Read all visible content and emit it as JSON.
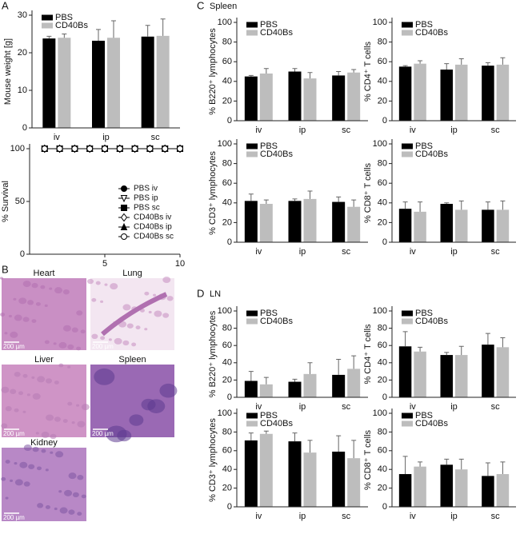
{
  "labels": {
    "a": "A",
    "b": "B",
    "c": "C",
    "c_title": "Spleen",
    "d": "D",
    "d_title": "LN"
  },
  "histology": [
    {
      "name": "Heart",
      "scale": "200 µm"
    },
    {
      "name": "Lung",
      "scale": "200 µm"
    },
    {
      "name": "Liver",
      "scale": "200 µm"
    },
    {
      "name": "Spleen",
      "scale": "200 µm"
    },
    {
      "name": "Kidney",
      "scale": "200 µm"
    }
  ],
  "chart_data": [
    {
      "type": "bar",
      "y_label": "Mouse weight [g]",
      "categories": [
        "iv",
        "ip",
        "sc"
      ],
      "series": [
        {
          "name": "PBS",
          "color": "#000000",
          "values": [
            23.8,
            23.2,
            24.3
          ],
          "errors": [
            0.6,
            3,
            3
          ]
        },
        {
          "name": "CD40Bs",
          "color": "#bdbdbd",
          "values": [
            24,
            24,
            24.5
          ],
          "errors": [
            1,
            4.5,
            4.5
          ]
        }
      ],
      "ylim": [
        0,
        30
      ],
      "yticks": [
        0,
        10,
        20,
        30
      ],
      "legend": "upper left"
    },
    {
      "type": "line",
      "y_label": "% Survival",
      "x": [
        1,
        2,
        3,
        4,
        5,
        6,
        7,
        8,
        9,
        10
      ],
      "xlim": [
        0,
        10
      ],
      "xticks": [
        5,
        10
      ],
      "ylim": [
        0,
        100
      ],
      "yticks": [
        0,
        50,
        100
      ],
      "legend": "lower right",
      "series": [
        {
          "name": "PBS iv",
          "color": "#000000",
          "marker": "circle",
          "marker_face": "#000000",
          "values": [
            100,
            100,
            100,
            100,
            100,
            100,
            100,
            100,
            100,
            100
          ]
        },
        {
          "name": "PBS ip",
          "color": "#000000",
          "marker": "triangle-down",
          "marker_face": "#ffffff",
          "values": [
            100,
            100,
            100,
            100,
            100,
            100,
            100,
            100,
            100,
            100
          ]
        },
        {
          "name": "PBS sc",
          "color": "#000000",
          "marker": "square",
          "marker_face": "#000000",
          "values": [
            100,
            100,
            100,
            100,
            100,
            100,
            100,
            100,
            100,
            100
          ]
        },
        {
          "name": "CD40Bs iv",
          "color": "#000000",
          "marker": "diamond",
          "marker_face": "#ffffff",
          "values": [
            100,
            100,
            100,
            100,
            100,
            100,
            100,
            100,
            100,
            100
          ]
        },
        {
          "name": "CD40Bs ip",
          "color": "#000000",
          "marker": "triangle",
          "marker_face": "#000000",
          "values": [
            100,
            100,
            100,
            100,
            100,
            100,
            100,
            100,
            100,
            100
          ]
        },
        {
          "name": "CD40Bs sc",
          "color": "#000000",
          "marker": "circle",
          "marker_face": "#ffffff",
          "values": [
            100,
            100,
            100,
            100,
            100,
            100,
            100,
            100,
            100,
            100
          ]
        }
      ]
    },
    {
      "type": "bar",
      "y_label": "% B220⁺ lymphocytes",
      "categories": [
        "iv",
        "ip",
        "sc"
      ],
      "series": [
        {
          "name": "PBS",
          "color": "#000000",
          "values": [
            45,
            50,
            46
          ],
          "errors": [
            1,
            3,
            4
          ]
        },
        {
          "name": "CD40Bs",
          "color": "#bdbdbd",
          "values": [
            48,
            43,
            49
          ],
          "errors": [
            5,
            6,
            3
          ]
        }
      ],
      "ylim": [
        0,
        100
      ],
      "yticks": [
        0,
        20,
        40,
        60,
        80,
        100
      ],
      "legend": "upper left"
    },
    {
      "type": "bar",
      "y_label": "% CD4⁺ T cells",
      "categories": [
        "iv",
        "ip",
        "sc"
      ],
      "series": [
        {
          "name": "PBS",
          "color": "#000000",
          "values": [
            55,
            52,
            56
          ],
          "errors": [
            1,
            6,
            3
          ]
        },
        {
          "name": "CD40Bs",
          "color": "#bdbdbd",
          "values": [
            58,
            57,
            57
          ],
          "errors": [
            3,
            6,
            7
          ]
        }
      ],
      "ylim": [
        0,
        100
      ],
      "yticks": [
        0,
        20,
        40,
        60,
        80,
        100
      ],
      "legend": "upper left"
    },
    {
      "type": "bar",
      "y_label": "% CD3⁺ lymphocytes",
      "categories": [
        "iv",
        "ip",
        "sc"
      ],
      "series": [
        {
          "name": "PBS",
          "color": "#000000",
          "values": [
            42,
            42,
            41
          ],
          "errors": [
            7,
            2,
            5
          ]
        },
        {
          "name": "CD40Bs",
          "color": "#bdbdbd",
          "values": [
            39,
            44,
            36
          ],
          "errors": [
            4,
            8,
            7
          ]
        }
      ],
      "ylim": [
        0,
        100
      ],
      "yticks": [
        0,
        20,
        40,
        60,
        80,
        100
      ],
      "legend": "upper left"
    },
    {
      "type": "bar",
      "y_label": "% CD8⁺ T cells",
      "categories": [
        "iv",
        "ip",
        "sc"
      ],
      "series": [
        {
          "name": "PBS",
          "color": "#000000",
          "values": [
            34,
            39,
            33
          ],
          "errors": [
            7,
            1,
            8
          ]
        },
        {
          "name": "CD40Bs",
          "color": "#bdbdbd",
          "values": [
            31,
            33,
            33
          ],
          "errors": [
            10,
            9,
            9
          ]
        }
      ],
      "ylim": [
        0,
        100
      ],
      "yticks": [
        0,
        20,
        40,
        60,
        80,
        100
      ],
      "legend": "upper left"
    },
    {
      "type": "bar",
      "y_label": "% B220⁺ lymphocytes",
      "categories": [
        "iv",
        "ip",
        "sc"
      ],
      "series": [
        {
          "name": "PBS",
          "color": "#000000",
          "values": [
            19,
            18,
            26
          ],
          "errors": [
            11,
            3,
            18
          ]
        },
        {
          "name": "CD40Bs",
          "color": "#bdbdbd",
          "values": [
            15,
            27,
            33
          ],
          "errors": [
            8,
            13,
            15
          ]
        }
      ],
      "ylim": [
        0,
        100
      ],
      "yticks": [
        0,
        20,
        40,
        60,
        80,
        100
      ],
      "legend": "upper left"
    },
    {
      "type": "bar",
      "y_label": "% CD4⁺ T cells",
      "categories": [
        "iv",
        "ip",
        "sc"
      ],
      "series": [
        {
          "name": "PBS",
          "color": "#000000",
          "values": [
            59,
            49,
            61
          ],
          "errors": [
            17,
            3,
            13
          ]
        },
        {
          "name": "CD40Bs",
          "color": "#bdbdbd",
          "values": [
            53,
            49,
            58
          ],
          "errors": [
            5,
            10,
            11
          ]
        }
      ],
      "ylim": [
        0,
        100
      ],
      "yticks": [
        0,
        20,
        40,
        60,
        80,
        100
      ],
      "legend": "upper left"
    },
    {
      "type": "bar",
      "y_label": "% CD3⁺ lymphocytes",
      "categories": [
        "iv",
        "ip",
        "sc"
      ],
      "series": [
        {
          "name": "PBS",
          "color": "#000000",
          "values": [
            71,
            70,
            59
          ],
          "errors": [
            8,
            9,
            17
          ]
        },
        {
          "name": "CD40Bs",
          "color": "#bdbdbd",
          "values": [
            78,
            58,
            52
          ],
          "errors": [
            3,
            13,
            19
          ]
        }
      ],
      "ylim": [
        0,
        100
      ],
      "yticks": [
        0,
        20,
        40,
        60,
        80,
        100
      ],
      "legend": "upper left"
    },
    {
      "type": "bar",
      "y_label": "% CD8⁺ T cells",
      "categories": [
        "iv",
        "ip",
        "sc"
      ],
      "series": [
        {
          "name": "PBS",
          "color": "#000000",
          "values": [
            35,
            45,
            33
          ],
          "errors": [
            19,
            6,
            14
          ]
        },
        {
          "name": "CD40Bs",
          "color": "#bdbdbd",
          "values": [
            43,
            40,
            35
          ],
          "errors": [
            5,
            11,
            13
          ]
        }
      ],
      "ylim": [
        0,
        100
      ],
      "yticks": [
        0,
        20,
        40,
        60,
        80,
        100
      ],
      "legend": "upper left"
    }
  ]
}
